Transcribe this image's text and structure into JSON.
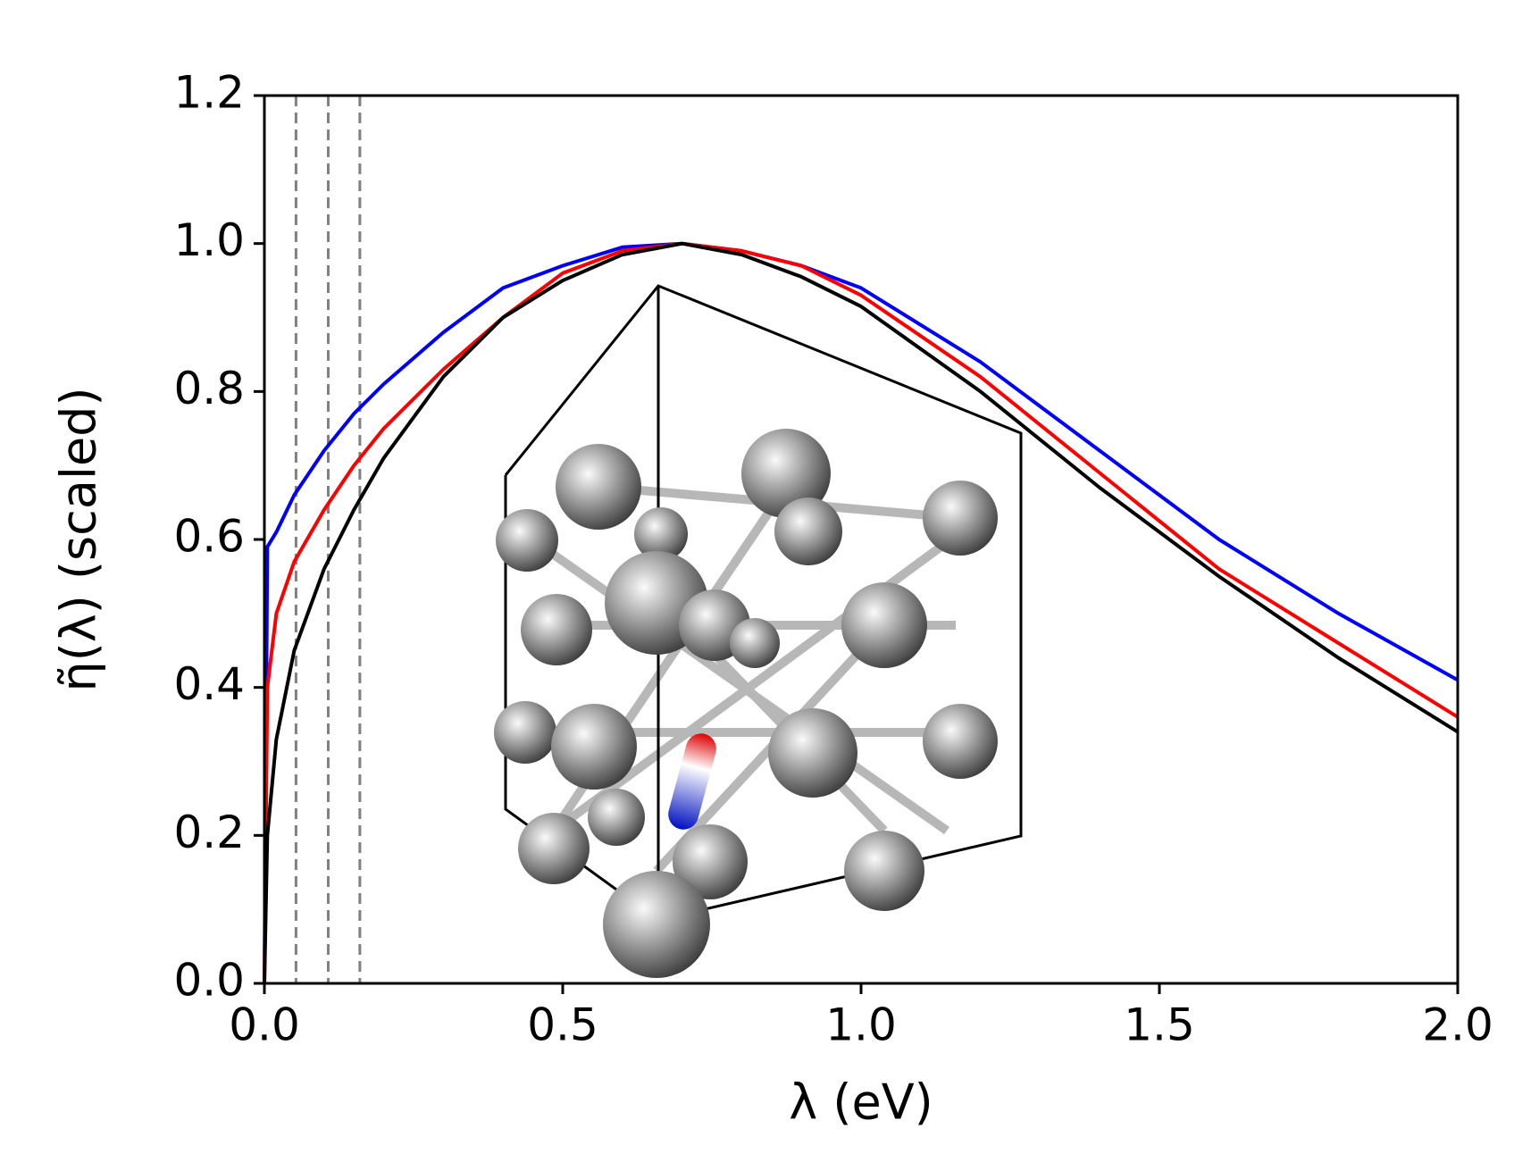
{
  "chart_data": {
    "type": "line",
    "xlabel": "λ (eV)",
    "ylabel": "η̃(λ) (scaled)",
    "x": [
      0,
      0.005,
      0.02,
      0.05,
      0.1,
      0.15,
      0.2,
      0.3,
      0.4,
      0.5,
      0.6,
      0.7,
      0.8,
      0.9,
      1.0,
      1.2,
      1.4,
      1.6,
      1.8,
      2.0
    ],
    "series": [
      {
        "color": "#0000ff",
        "values": [
          0,
          0.59,
          0.61,
          0.66,
          0.72,
          0.77,
          0.81,
          0.88,
          0.94,
          0.97,
          0.995,
          1.0,
          0.99,
          0.97,
          0.94,
          0.84,
          0.72,
          0.6,
          0.5,
          0.41
        ]
      },
      {
        "color": "#ff0000",
        "values": [
          0,
          0.4,
          0.5,
          0.57,
          0.64,
          0.7,
          0.75,
          0.83,
          0.9,
          0.96,
          0.99,
          1.0,
          0.99,
          0.97,
          0.93,
          0.82,
          0.69,
          0.56,
          0.46,
          0.36
        ]
      },
      {
        "color": "#000000",
        "values": [
          0,
          0.2,
          0.33,
          0.45,
          0.56,
          0.64,
          0.71,
          0.82,
          0.9,
          0.95,
          0.985,
          1.0,
          0.985,
          0.955,
          0.915,
          0.8,
          0.67,
          0.55,
          0.44,
          0.34
        ]
      }
    ],
    "vlines": [
      0.053,
      0.107,
      0.16
    ],
    "vline_color": "#808080",
    "xlim": [
      0,
      2
    ],
    "ylim": [
      0,
      1.2
    ],
    "xticks": [
      {
        "value": 0,
        "label": "0.0"
      },
      0.5,
      {
        "value": 1,
        "label": "1.0"
      },
      1.5,
      {
        "value": 2,
        "label": "2.0"
      }
    ],
    "yticks": [
      {
        "value": 0,
        "label": "0.0"
      },
      0.2,
      0.4,
      0.6,
      0.8,
      {
        "value": 1,
        "label": "1.0"
      },
      1.2
    ],
    "grid": false
  }
}
